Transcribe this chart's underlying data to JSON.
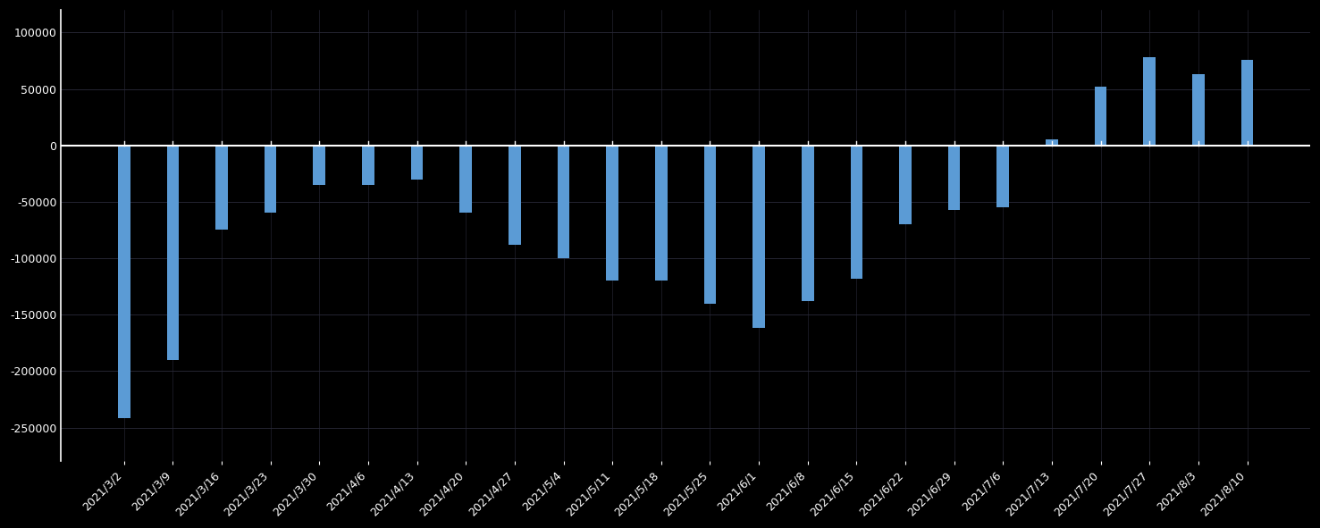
{
  "categories": [
    "2021/3/2",
    "2021/3/9",
    "2021/3/16",
    "2021/3/23",
    "2021/3/30",
    "2021/4/6",
    "2021/4/13",
    "2021/4/20",
    "2021/4/27",
    "2021/5/4",
    "2021/5/11",
    "2021/5/18",
    "2021/5/25",
    "2021/6/1",
    "2021/6/8",
    "2021/6/15",
    "2021/6/22",
    "2021/6/29",
    "2021/7/6",
    "2021/7/13",
    "2021/7/20",
    "2021/7/27",
    "2021/8/3",
    "2021/8/10"
  ],
  "values": [
    -242000,
    -190000,
    -75000,
    -60000,
    -35000,
    -35000,
    -30000,
    -60000,
    -88000,
    -100000,
    -120000,
    -120000,
    -140000,
    -162000,
    -138000,
    -118000,
    -70000,
    -57000,
    -55000,
    5000,
    52000,
    78000,
    63000,
    76000
  ],
  "bar_color": "#5b9bd5",
  "background_color": "#000000",
  "grid_color": "#2a2a3a",
  "text_color": "#ffffff",
  "axis_line_color": "#ffffff",
  "ylim": [
    -280000,
    120000
  ],
  "yticks": [
    -250000,
    -200000,
    -150000,
    -100000,
    -50000,
    0,
    50000,
    100000
  ],
  "bar_width": 0.25
}
